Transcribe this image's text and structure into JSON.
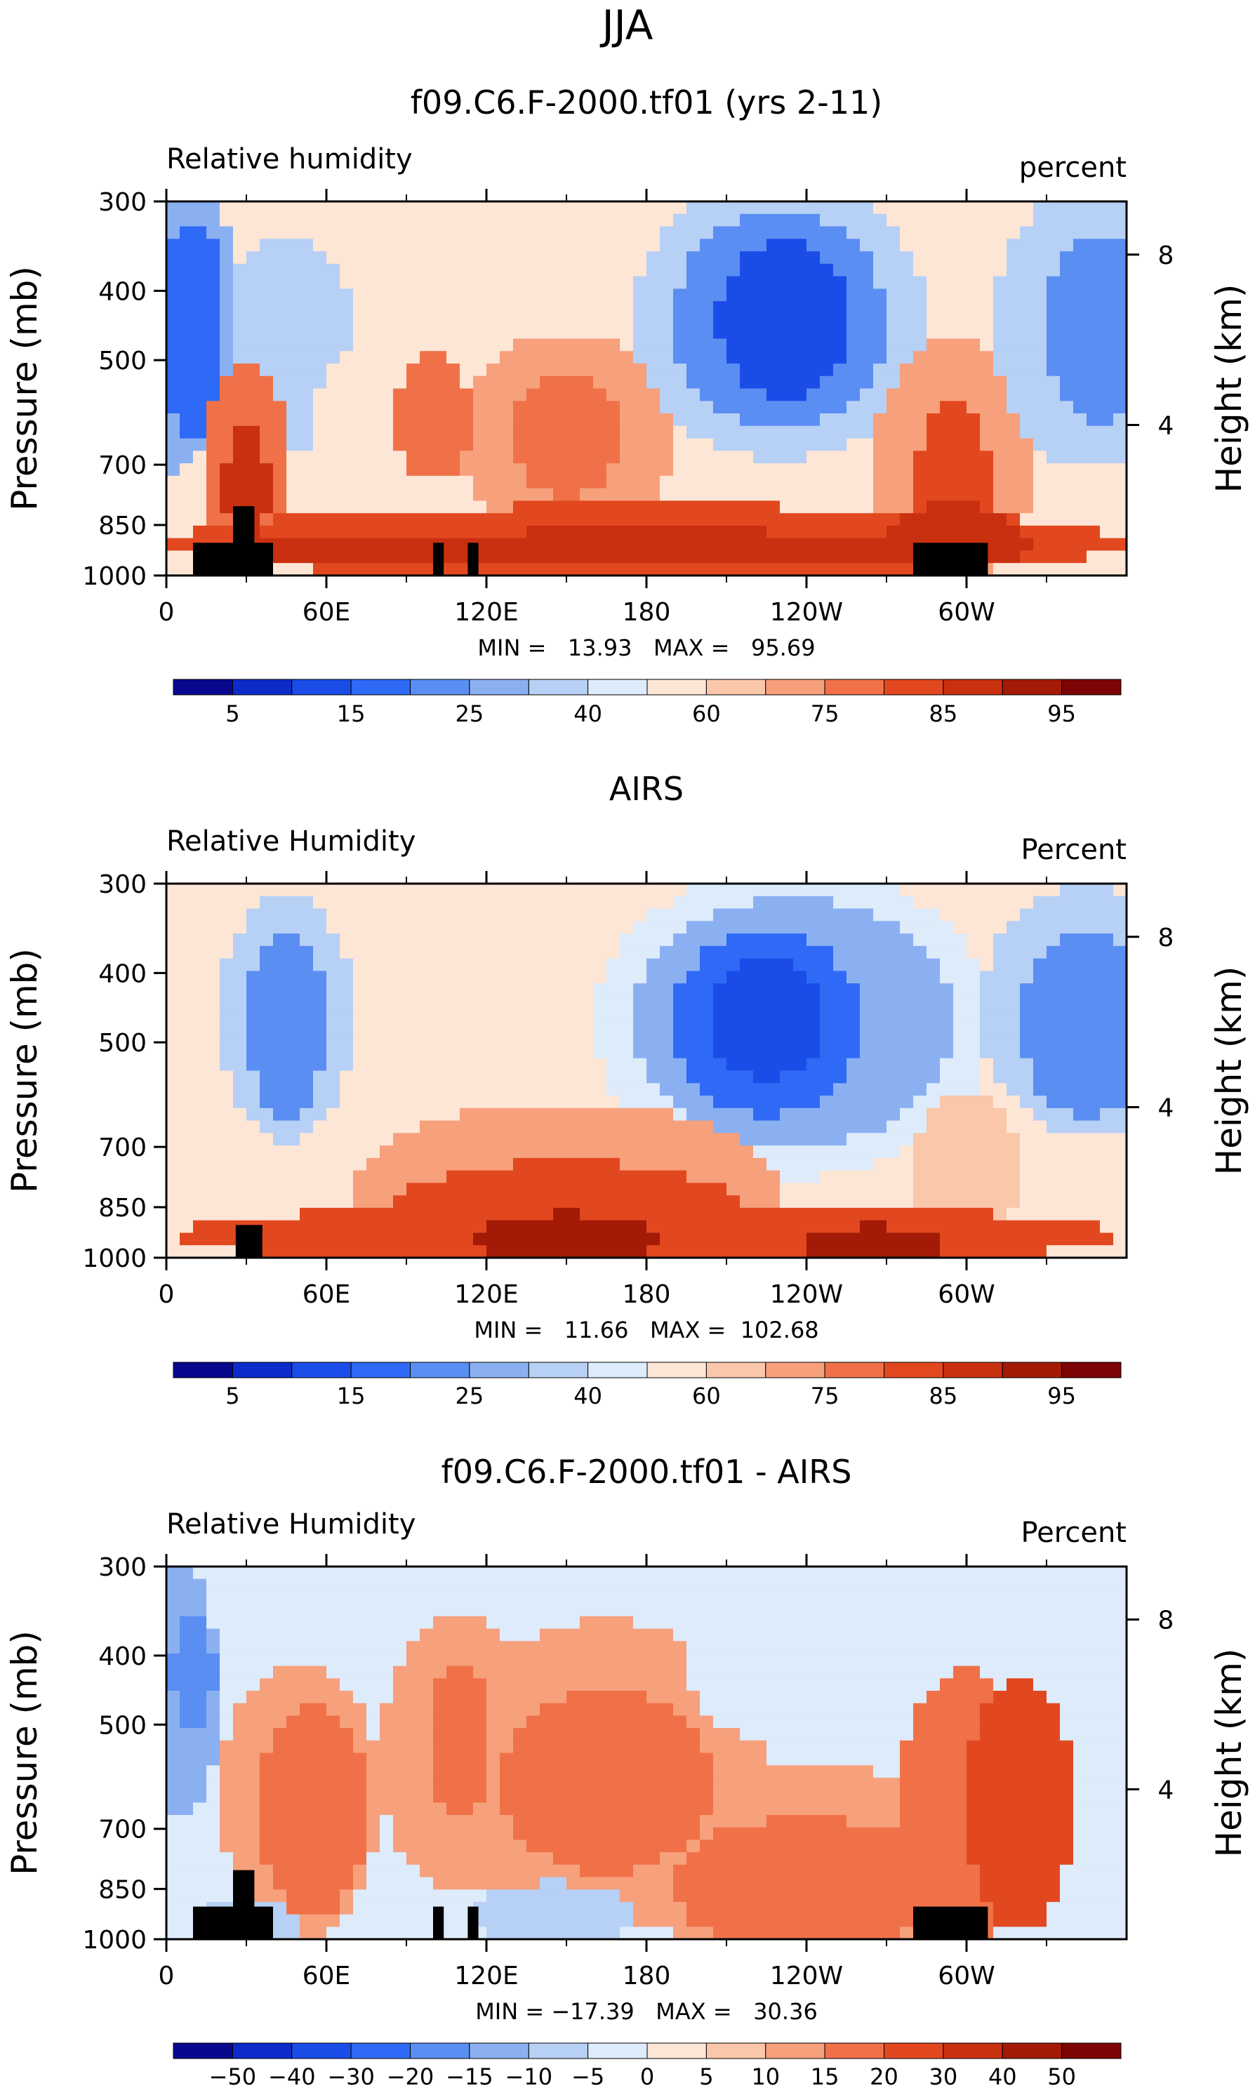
{
  "page_title": "JJA",
  "color_levels": {
    "abs": [
      "#08088f",
      "#0c2bc9",
      "#1a4de8",
      "#2e6af5",
      "#5a8ef2",
      "#8bb0f2",
      "#b7d0f5",
      "#ddebfb",
      "#fde6d6",
      "#fbc7aa",
      "#f7a07c",
      "#f07148",
      "#e2481f",
      "#c9300f",
      "#a31a06",
      "#7c0404"
    ],
    "diff": [
      "#08088f",
      "#0c2bc9",
      "#1a4de8",
      "#2e6af5",
      "#5a8ef2",
      "#8bb0f2",
      "#b7d0f5",
      "#ddebfb",
      "#fde6d6",
      "#fbc7aa",
      "#f7a07c",
      "#f07148",
      "#e2481f",
      "#c9300f",
      "#a31a06",
      "#7c0404"
    ]
  },
  "colorbar_abs_labels": [
    "5",
    "15",
    "25",
    "40",
    "60",
    "75",
    "85",
    "95"
  ],
  "colorbar_diff_labels": [
    "−50",
    "−40",
    "−30",
    "−20",
    "−15",
    "−10",
    "−5",
    "0",
    "5",
    "10",
    "15",
    "20",
    "30",
    "40",
    "50"
  ],
  "chart_data": [
    {
      "type": "contour",
      "title": "f09.C6.F-2000.tf01 (yrs 2-11)",
      "left_label": "Relative humidity",
      "right_label": "percent",
      "ylabel": "Pressure (mb)",
      "y2label": "Height (km)",
      "x_ticks": [
        "0",
        "60E",
        "120E",
        "180",
        "120W",
        "60W"
      ],
      "y_ticks": [
        "300",
        "400",
        "500",
        "700",
        "850",
        "1000"
      ],
      "y2_ticks": [
        "8",
        "4"
      ],
      "stats": "MIN =   13.93   MAX =   95.69",
      "min": 13.93,
      "max": 95.69,
      "ylim": [
        1000,
        300
      ],
      "xlim": [
        0,
        360
      ]
    },
    {
      "type": "contour",
      "title": "AIRS",
      "left_label": "Relative Humidity",
      "right_label": "Percent",
      "ylabel": "Pressure (mb)",
      "y2label": "Height (km)",
      "x_ticks": [
        "0",
        "60E",
        "120E",
        "180",
        "120W",
        "60W"
      ],
      "y_ticks": [
        "300",
        "400",
        "500",
        "700",
        "850",
        "1000"
      ],
      "y2_ticks": [
        "8",
        "4"
      ],
      "stats": "MIN =   11.66   MAX =  102.68",
      "min": 11.66,
      "max": 102.68,
      "ylim": [
        1000,
        300
      ],
      "xlim": [
        0,
        360
      ]
    },
    {
      "type": "contour",
      "title": "f09.C6.F-2000.tf01 - AIRS",
      "left_label": "Relative Humidity",
      "right_label": "Percent",
      "ylabel": "Pressure (mb)",
      "y2label": "Height (km)",
      "x_ticks": [
        "0",
        "60E",
        "120E",
        "180",
        "120W",
        "60W"
      ],
      "y_ticks": [
        "300",
        "400",
        "500",
        "700",
        "850",
        "1000"
      ],
      "y2_ticks": [
        "8",
        "4"
      ],
      "stats": "MIN = −17.39   MAX =   30.36",
      "min": -17.39,
      "max": 30.36,
      "ylim": [
        1000,
        300
      ],
      "xlim": [
        0,
        360
      ]
    }
  ]
}
